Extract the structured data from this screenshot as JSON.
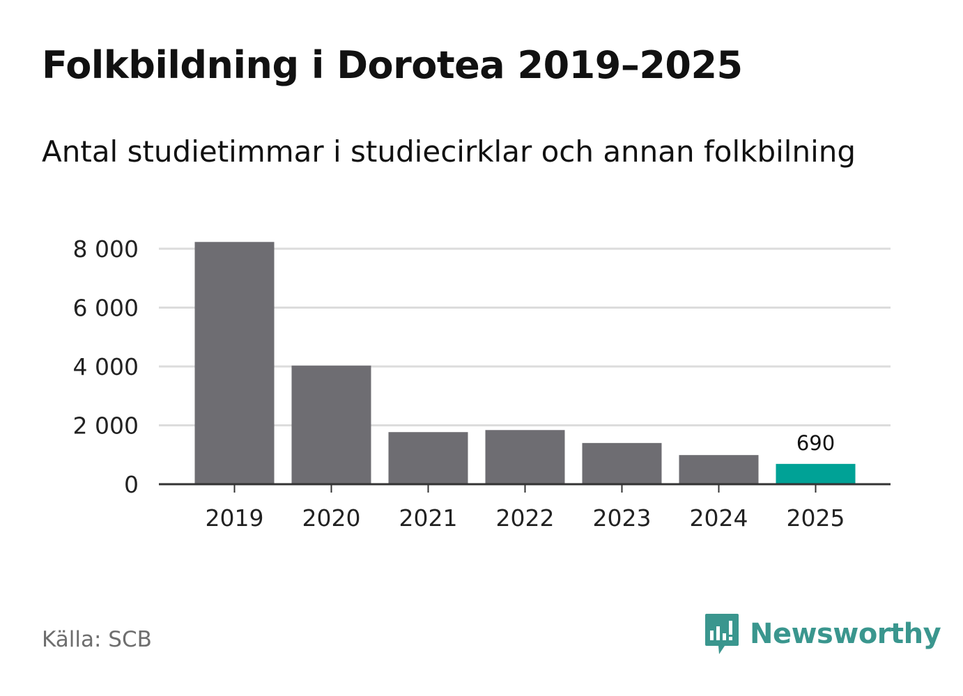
{
  "title": "Folkbildning i Dorotea 2019–2025",
  "subtitle": "Antal studietimmar i studiecirklar och annan folkbilning",
  "source": "Källa: SCB",
  "brand": "Newsworthy",
  "colors": {
    "bar_default": "#6e6d72",
    "bar_highlight": "#00a296",
    "gridline": "#dcdcdc",
    "axis": "#333333",
    "brand": "#3a968e"
  },
  "chart_data": {
    "type": "bar",
    "title": "Folkbildning i Dorotea 2019–2025",
    "subtitle": "Antal studietimmar i studiecirklar och annan folkbilning",
    "xlabel": "",
    "ylabel": "",
    "categories": [
      "2019",
      "2020",
      "2021",
      "2022",
      "2023",
      "2024",
      "2025"
    ],
    "values": [
      8230,
      4030,
      1770,
      1840,
      1400,
      990,
      690
    ],
    "highlight_index": 6,
    "data_labels": [
      {
        "index": 6,
        "text": "690"
      }
    ],
    "ylim": [
      0,
      8000
    ],
    "yticks": [
      0,
      2000,
      4000,
      6000,
      8000
    ],
    "ytick_labels": [
      "0",
      "2 000",
      "4 000",
      "6 000",
      "8 000"
    ],
    "grid": true,
    "legend": "none"
  }
}
